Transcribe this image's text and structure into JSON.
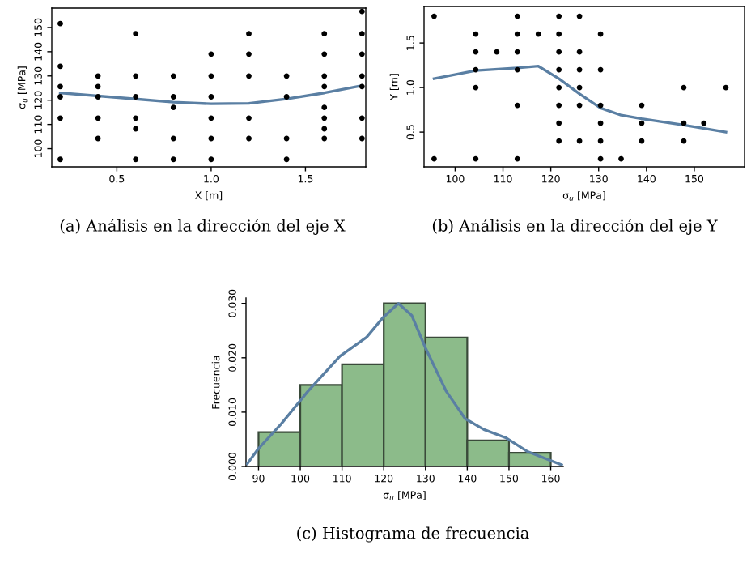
{
  "chart_data": [
    {
      "type": "scatter",
      "xlabel": "X [m]",
      "ylabel": "σ$_{u}$ [MPa]",
      "annotations": [
        "(a) Análisis en la dirección del eje X"
      ],
      "xlim": [
        0.155,
        1.82
      ],
      "ylim": [
        92.5,
        158
      ],
      "xticks": [
        {
          "value": 0.5,
          "label": "0.5"
        },
        {
          "value": 1.0,
          "label": "1.0"
        },
        {
          "value": 1.5,
          "label": "1.5"
        }
      ],
      "yticks": [
        100,
        110,
        120,
        130,
        140,
        150
      ],
      "grid": false,
      "series": [
        {
          "type": "scatter",
          "marker": "circle",
          "color": "#000000",
          "x": [
            0.2,
            0.2,
            0.2,
            0.2,
            0.2,
            0.2,
            0.4,
            0.4,
            0.4,
            0.4,
            0.4,
            0.6,
            0.6,
            0.6,
            0.6,
            0.6,
            0.6,
            0.8,
            0.8,
            0.8,
            0.8,
            0.8,
            1.0,
            1.0,
            1.0,
            1.0,
            1.0,
            1.0,
            1.2,
            1.2,
            1.2,
            1.2,
            1.2,
            1.4,
            1.4,
            1.4,
            1.4,
            1.6,
            1.6,
            1.6,
            1.6,
            1.6,
            1.6,
            1.6,
            1.6,
            1.8,
            1.8,
            1.8,
            1.8,
            1.8,
            1.8,
            1.8
          ],
          "values": [
            95.6,
            112.6,
            121.4,
            125.6,
            134,
            151.6,
            104.2,
            112.6,
            121.4,
            125.6,
            130,
            95.6,
            108.2,
            112.6,
            121.4,
            130,
            147.4,
            95.6,
            104.2,
            117,
            121.4,
            130,
            95.6,
            104.2,
            112.6,
            121.4,
            130,
            139,
            104.2,
            112.6,
            130,
            139,
            147.4,
            95.6,
            104.2,
            121.4,
            130,
            104.2,
            108.2,
            112.6,
            117,
            125.6,
            130,
            139,
            147.4,
            104.2,
            112.6,
            125.6,
            130,
            139,
            147.4,
            156.6
          ]
        },
        {
          "type": "line",
          "color": "#5a7fa3",
          "x": [
            0.2,
            0.6,
            0.8,
            1.0,
            1.2,
            1.4,
            1.6,
            1.8
          ],
          "values": [
            123,
            120.5,
            119.2,
            118.5,
            118.7,
            120.5,
            123,
            126
          ]
        }
      ]
    },
    {
      "type": "scatter",
      "xlabel": "σ$_{u}$ [MPa]",
      "ylabel": "Y [m]",
      "annotations": [
        "(b) Análisis en la dirección del eje Y"
      ],
      "xlim": [
        93.5,
        160.5
      ],
      "ylim": [
        0.11,
        1.91
      ],
      "xticks": [
        100,
        110,
        120,
        130,
        140,
        150
      ],
      "yticks": [
        {
          "value": 0.5,
          "label": "0.5"
        },
        {
          "value": 1.0,
          "label": "1.0"
        },
        {
          "value": 1.5,
          "label": "1.5"
        }
      ],
      "grid": false,
      "series": [
        {
          "type": "scatter",
          "marker": "circle",
          "color": "#000000",
          "x": [
            95.6,
            95.6,
            104.3,
            104.3,
            104.3,
            104.3,
            104.3,
            108.7,
            113,
            113,
            113,
            113,
            113,
            113,
            117.4,
            121.7,
            121.7,
            121.7,
            121.7,
            121.7,
            121.7,
            121.7,
            121.7,
            126,
            126,
            126,
            126,
            126,
            126,
            130.4,
            130.4,
            130.4,
            130.4,
            130.4,
            130.4,
            134.7,
            139,
            139,
            139,
            147.8,
            147.8,
            147.8,
            152,
            156.6
          ],
          "values": [
            1.8,
            0.2,
            1.6,
            1.4,
            1.2,
            1.0,
            0.2,
            1.4,
            1.8,
            1.6,
            1.4,
            1.2,
            0.8,
            0.2,
            1.6,
            1.8,
            1.6,
            1.4,
            1.2,
            1.0,
            0.8,
            0.6,
            0.4,
            1.8,
            1.4,
            1.2,
            1.0,
            0.8,
            0.4,
            1.6,
            1.2,
            0.8,
            0.6,
            0.4,
            0.2,
            0.2,
            0.8,
            0.6,
            0.4,
            1.0,
            0.6,
            0.4,
            0.6,
            1.0
          ]
        },
        {
          "type": "line",
          "color": "#5a7fa3",
          "x": [
            95.6,
            104.3,
            113,
            117.4,
            121.7,
            126,
            130.4,
            134.7,
            139,
            147.8,
            156.6
          ],
          "values": [
            1.1,
            1.19,
            1.22,
            1.24,
            1.1,
            0.93,
            0.77,
            0.69,
            0.65,
            0.58,
            0.5
          ]
        }
      ]
    },
    {
      "type": "histogram",
      "xlabel": "σ$_{u}$ [MPa]",
      "ylabel": "Frecuencia",
      "annotations": [
        "(c) Histograma de frecuencia"
      ],
      "xlim": [
        87,
        163
      ],
      "ylim": [
        0,
        0.031
      ],
      "xticks": [
        90,
        100,
        110,
        120,
        130,
        140,
        150,
        160
      ],
      "yticks": [
        {
          "value": 0,
          "label": "0.000"
        },
        {
          "value": 0.01,
          "label": "0.010"
        },
        {
          "value": 0.02,
          "label": "0.020"
        },
        {
          "value": 0.03,
          "label": "0.030"
        }
      ],
      "grid": false,
      "series": [
        {
          "type": "histogram",
          "color": "#8cbb8a",
          "bins": [
            90,
            100,
            110,
            120,
            130,
            140,
            150,
            160
          ],
          "values": [
            0.0063,
            0.015,
            0.0188,
            0.03,
            0.0237,
            0.0048,
            0.0025
          ]
        },
        {
          "type": "line",
          "color": "#5a7fa3",
          "x": [
            87.3,
            90,
            95.4,
            101.8,
            109.5,
            115.9,
            119.7,
            123.5,
            126.7,
            130,
            135,
            139.5,
            144,
            149.2,
            154.3,
            162.6
          ],
          "values": [
            0.0005,
            0.0033,
            0.0078,
            0.0138,
            0.0203,
            0.0238,
            0.0273,
            0.03,
            0.0278,
            0.0218,
            0.0138,
            0.0088,
            0.0068,
            0.0053,
            0.0028,
            0.0003
          ]
        }
      ]
    }
  ]
}
